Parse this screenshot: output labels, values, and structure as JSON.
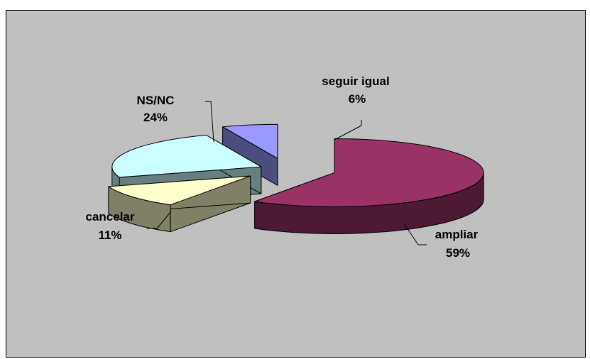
{
  "chart_data": {
    "type": "pie",
    "style": "3d-exploded",
    "legend": "none",
    "slices": [
      {
        "label": "ampliar",
        "value": 59,
        "pct_label": "59%",
        "color": "#993366",
        "side_color": "#4d1933"
      },
      {
        "label": "cancelar",
        "value": 11,
        "pct_label": "11%",
        "color": "#ffffcc",
        "side_color": "#808066"
      },
      {
        "label": "NS/NC",
        "value": 24,
        "pct_label": "24%",
        "color": "#ccffff",
        "side_color": "#668080"
      },
      {
        "label": "seguir igual",
        "value": 6,
        "pct_label": "6%",
        "color": "#9999ff",
        "side_color": "#4d4d80"
      }
    ]
  },
  "colors": {
    "plot_background": "#c0c0c0",
    "outline": "#000000"
  }
}
